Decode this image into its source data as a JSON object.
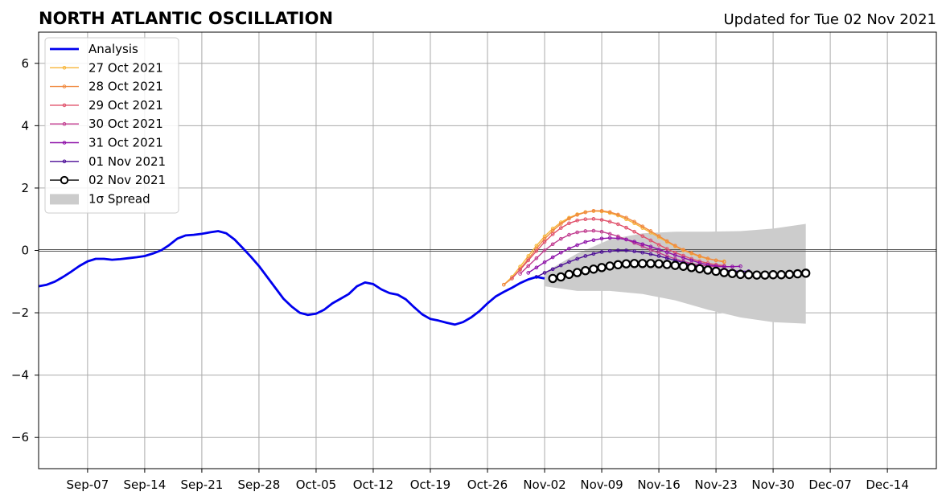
{
  "chart_data": {
    "type": "line",
    "title": "NORTH ATLANTIC OSCILLATION",
    "subtitle": "Updated for Tue 02 Nov 2021",
    "xlabel": "",
    "ylabel": "",
    "xlim": [
      "2021-09-01",
      "2021-12-20"
    ],
    "ylim": [
      -7,
      7
    ],
    "x_ticks": [
      "Sep-07",
      "Sep-14",
      "Sep-21",
      "Sep-28",
      "Oct-05",
      "Oct-12",
      "Oct-19",
      "Oct-26",
      "Nov-02",
      "Nov-09",
      "Nov-16",
      "Nov-23",
      "Nov-30",
      "Dec-07",
      "Dec-14"
    ],
    "y_ticks": [
      6,
      4,
      2,
      0,
      -2,
      -4,
      -6
    ],
    "y_tick_labels": [
      "6",
      "4",
      "2",
      "0",
      "−2",
      "−4",
      "−6"
    ],
    "grid": true,
    "legend_position": "top-left",
    "spread": {
      "name": "1σ Spread",
      "color": "#cccccc",
      "x": [
        "2021-11-02",
        "2021-11-06",
        "2021-11-10",
        "2021-11-14",
        "2021-11-18",
        "2021-11-22",
        "2021-11-26",
        "2021-11-30",
        "2021-12-04"
      ],
      "upper": [
        -0.7,
        -0.1,
        0.35,
        0.55,
        0.6,
        0.6,
        0.62,
        0.7,
        0.85
      ],
      "lower": [
        -1.15,
        -1.3,
        -1.3,
        -1.4,
        -1.6,
        -1.9,
        -2.15,
        -2.3,
        -2.35
      ]
    },
    "series": [
      {
        "name": "Analysis",
        "color": "#0000ee",
        "style": "thick",
        "x": [
          "2021-09-01",
          "2021-09-02",
          "2021-09-03",
          "2021-09-04",
          "2021-09-05",
          "2021-09-06",
          "2021-09-07",
          "2021-09-08",
          "2021-09-09",
          "2021-09-10",
          "2021-09-11",
          "2021-09-12",
          "2021-09-13",
          "2021-09-14",
          "2021-09-15",
          "2021-09-16",
          "2021-09-17",
          "2021-09-18",
          "2021-09-19",
          "2021-09-20",
          "2021-09-21",
          "2021-09-22",
          "2021-09-23",
          "2021-09-24",
          "2021-09-25",
          "2021-09-26",
          "2021-09-27",
          "2021-09-28",
          "2021-09-29",
          "2021-09-30",
          "2021-10-01",
          "2021-10-02",
          "2021-10-03",
          "2021-10-04",
          "2021-10-05",
          "2021-10-06",
          "2021-10-07",
          "2021-10-08",
          "2021-10-09",
          "2021-10-10",
          "2021-10-11",
          "2021-10-12",
          "2021-10-13",
          "2021-10-14",
          "2021-10-15",
          "2021-10-16",
          "2021-10-17",
          "2021-10-18",
          "2021-10-19",
          "2021-10-20",
          "2021-10-21",
          "2021-10-22",
          "2021-10-23",
          "2021-10-24",
          "2021-10-25",
          "2021-10-26",
          "2021-10-27",
          "2021-10-28",
          "2021-10-29",
          "2021-10-30",
          "2021-10-31",
          "2021-11-01",
          "2021-11-02"
        ],
        "values": [
          -1.15,
          -1.1,
          -1.0,
          -0.85,
          -0.68,
          -0.5,
          -0.35,
          -0.27,
          -0.27,
          -0.3,
          -0.28,
          -0.25,
          -0.22,
          -0.18,
          -0.1,
          0.0,
          0.17,
          0.38,
          0.48,
          0.5,
          0.53,
          0.58,
          0.62,
          0.55,
          0.35,
          0.08,
          -0.2,
          -0.5,
          -0.85,
          -1.2,
          -1.55,
          -1.8,
          -2.0,
          -2.07,
          -2.03,
          -1.9,
          -1.7,
          -1.55,
          -1.4,
          -1.15,
          -1.03,
          -1.08,
          -1.25,
          -1.37,
          -1.42,
          -1.57,
          -1.82,
          -2.05,
          -2.2,
          -2.25,
          -2.32,
          -2.38,
          -2.3,
          -2.15,
          -1.95,
          -1.7,
          -1.48,
          -1.33,
          -1.2,
          -1.05,
          -0.93,
          -0.85,
          -0.9
        ]
      },
      {
        "name": "27 Oct 2021",
        "color": "#f7b538",
        "x_start": "2021-10-28",
        "values": [
          -1.1,
          -0.85,
          -0.52,
          -0.18,
          0.15,
          0.45,
          0.7,
          0.9,
          1.05,
          1.16,
          1.23,
          1.26,
          1.25,
          1.2,
          1.12,
          1.0,
          0.87,
          0.72,
          0.57,
          0.42,
          0.27,
          0.13,
          0.0,
          -0.1,
          -0.2,
          -0.27,
          -0.32,
          -0.35
        ]
      },
      {
        "name": "28 Oct 2021",
        "color": "#f0883e",
        "x_start": "2021-10-28",
        "values": [
          -1.1,
          -0.9,
          -0.6,
          -0.27,
          0.06,
          0.37,
          0.63,
          0.85,
          1.02,
          1.14,
          1.22,
          1.27,
          1.27,
          1.23,
          1.15,
          1.05,
          0.92,
          0.77,
          0.62,
          0.46,
          0.3,
          0.15,
          0.02,
          -0.08,
          -0.18,
          -0.26,
          -0.32,
          -0.37
        ]
      },
      {
        "name": "29 Oct 2021",
        "color": "#e0506a",
        "x_start": "2021-10-29",
        "values": [
          -0.9,
          -0.62,
          -0.32,
          -0.02,
          0.27,
          0.52,
          0.72,
          0.87,
          0.96,
          1.0,
          1.01,
          0.98,
          0.92,
          0.84,
          0.73,
          0.6,
          0.46,
          0.32,
          0.18,
          0.05,
          -0.07,
          -0.17,
          -0.27,
          -0.35,
          -0.41,
          -0.46,
          -0.49
        ]
      },
      {
        "name": "30 Oct 2021",
        "color": "#c03a8e",
        "x_start": "2021-10-30",
        "values": [
          -0.75,
          -0.5,
          -0.25,
          0.0,
          0.2,
          0.37,
          0.5,
          0.58,
          0.62,
          0.63,
          0.6,
          0.53,
          0.45,
          0.35,
          0.24,
          0.13,
          0.02,
          -0.08,
          -0.18,
          -0.27,
          -0.35,
          -0.42,
          -0.47,
          -0.5,
          -0.52,
          -0.52,
          -0.52
        ]
      },
      {
        "name": "31 Oct 2021",
        "color": "#8e11a8",
        "x_start": "2021-10-31",
        "values": [
          -0.72,
          -0.55,
          -0.38,
          -0.22,
          -0.07,
          0.06,
          0.17,
          0.27,
          0.33,
          0.38,
          0.4,
          0.39,
          0.35,
          0.28,
          0.2,
          0.12,
          0.03,
          -0.06,
          -0.15,
          -0.24,
          -0.32,
          -0.4,
          -0.46,
          -0.5,
          -0.52,
          -0.52,
          -0.51
        ]
      },
      {
        "name": "01 Nov 2021",
        "color": "#4b0c96",
        "x_start": "2021-11-01",
        "values": [
          -0.85,
          -0.72,
          -0.6,
          -0.48,
          -0.37,
          -0.27,
          -0.18,
          -0.11,
          -0.05,
          -0.02,
          0.0,
          0.0,
          -0.03,
          -0.07,
          -0.12,
          -0.18,
          -0.25,
          -0.32,
          -0.39,
          -0.46,
          -0.52,
          -0.57,
          -0.61,
          -0.64,
          -0.66,
          -0.67,
          -0.67
        ]
      },
      {
        "name": "02 Nov 2021",
        "color": "#000000",
        "style": "circles",
        "x_start": "2021-11-03",
        "values": [
          -0.9,
          -0.85,
          -0.77,
          -0.71,
          -0.65,
          -0.6,
          -0.55,
          -0.5,
          -0.46,
          -0.43,
          -0.42,
          -0.42,
          -0.42,
          -0.43,
          -0.45,
          -0.48,
          -0.51,
          -0.55,
          -0.59,
          -0.63,
          -0.67,
          -0.71,
          -0.74,
          -0.77,
          -0.78,
          -0.79,
          -0.79,
          -0.78,
          -0.78,
          -0.77,
          -0.75,
          -0.73
        ]
      }
    ]
  }
}
